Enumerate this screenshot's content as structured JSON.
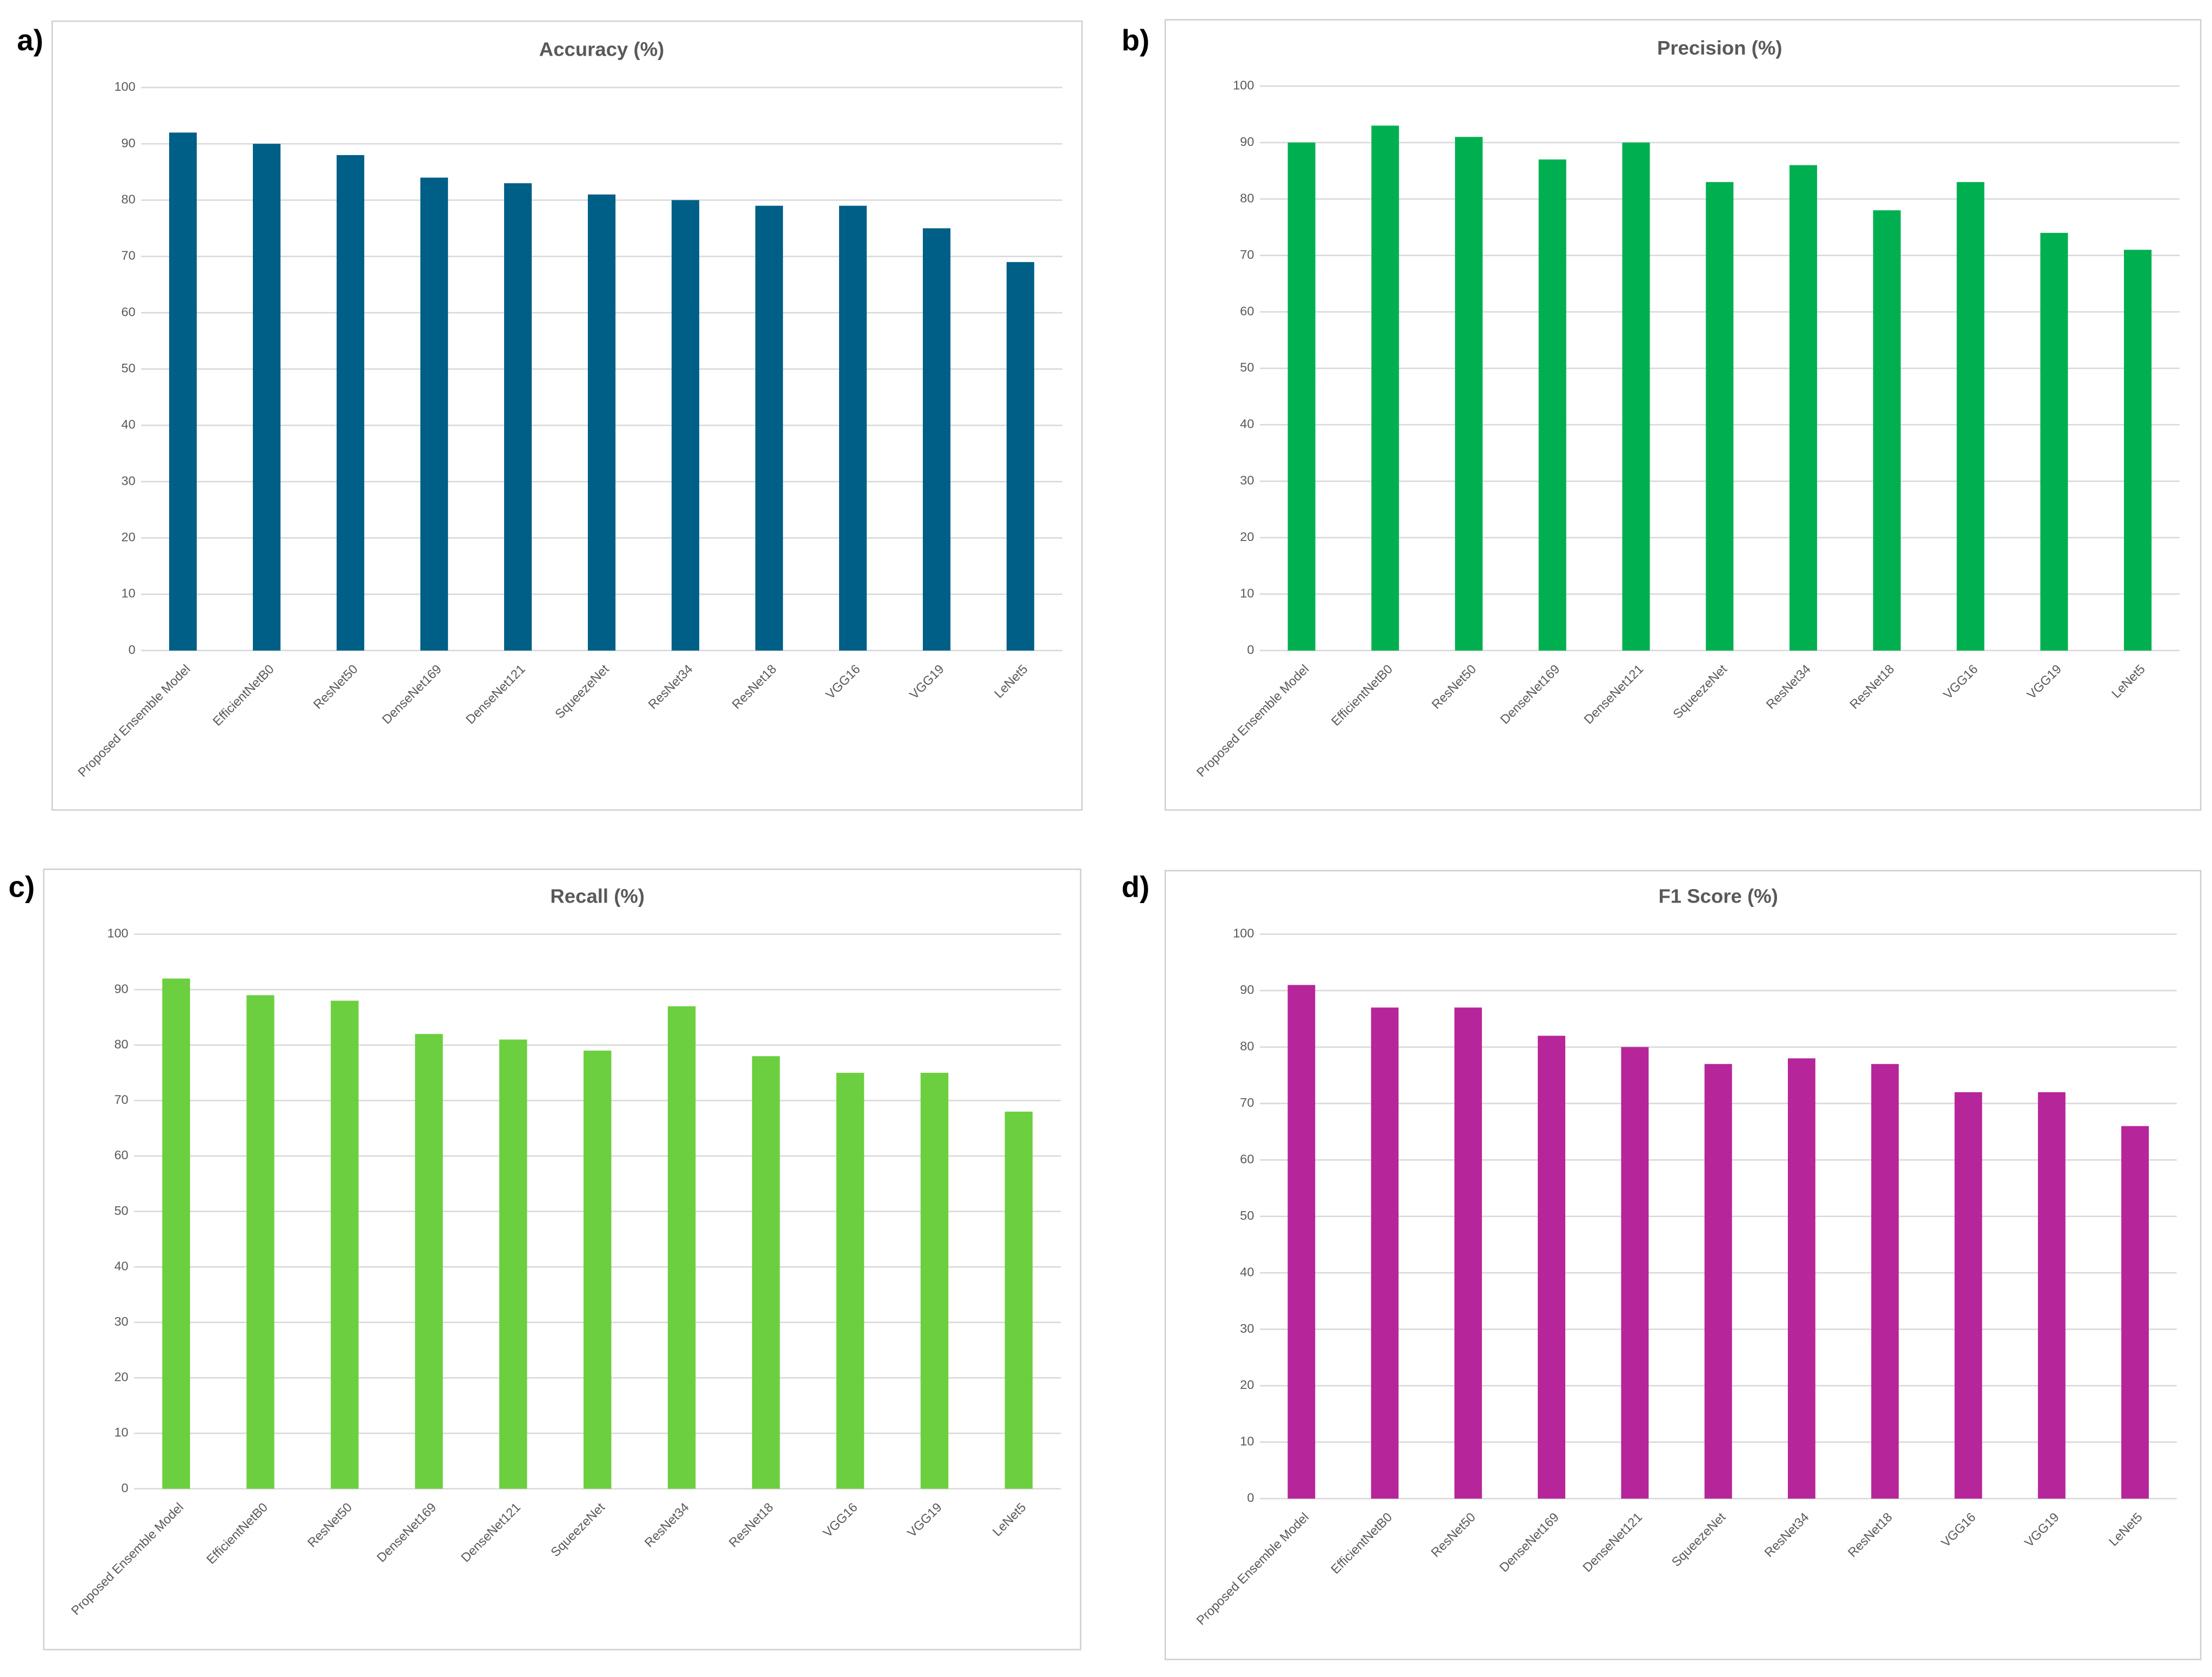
{
  "chart_data": [
    {
      "type": "bar",
      "label": "a)",
      "title": "Accuracy (%)",
      "categories": [
        "Proposed Ensemble Model",
        "EfficientNetB0",
        "ResNet50",
        "DenseNet169",
        "DenseNet121",
        "SqueezeNet",
        "ResNet34",
        "ResNet18",
        "VGG16",
        "VGG19",
        "LeNet5"
      ],
      "values": [
        92,
        90,
        88,
        84,
        83,
        81,
        80,
        79,
        79,
        75,
        69
      ],
      "color": "#005f87",
      "ylim": [
        0,
        100
      ],
      "yticks": [
        0,
        10,
        20,
        30,
        40,
        50,
        60,
        70,
        80,
        90,
        100
      ],
      "grid": true
    },
    {
      "type": "bar",
      "label": "b)",
      "title": "Precision (%)",
      "categories": [
        "Proposed Ensemble Model",
        "EfficientNetB0",
        "ResNet50",
        "DenseNet169",
        "DenseNet121",
        "SqueezeNet",
        "ResNet34",
        "ResNet18",
        "VGG16",
        "VGG19",
        "LeNet5"
      ],
      "values": [
        90,
        93,
        91,
        87,
        90,
        83,
        86,
        78,
        83,
        74,
        71
      ],
      "color": "#00b050",
      "ylim": [
        0,
        100
      ],
      "yticks": [
        0,
        10,
        20,
        30,
        40,
        50,
        60,
        70,
        80,
        90,
        100
      ],
      "grid": true
    },
    {
      "type": "bar",
      "label": "c)",
      "title": "Recall (%)",
      "categories": [
        "Proposed Ensemble Model",
        "EfficientNetB0",
        "ResNet50",
        "DenseNet169",
        "DenseNet121",
        "SqueezeNet",
        "ResNet34",
        "ResNet18",
        "VGG16",
        "VGG19",
        "LeNet5"
      ],
      "values": [
        92,
        89,
        88,
        82,
        81,
        79,
        87,
        78,
        75,
        75,
        68
      ],
      "color": "#6ccf3f",
      "ylim": [
        0,
        100
      ],
      "yticks": [
        0,
        10,
        20,
        30,
        40,
        50,
        60,
        70,
        80,
        90,
        100
      ],
      "grid": true
    },
    {
      "type": "bar",
      "label": "d)",
      "title": "F1 Score (%)",
      "categories": [
        "Proposed Ensemble Model",
        "EfficientNetB0",
        "ResNet50",
        "DenseNet169",
        "DenseNet121",
        "SqueezeNet",
        "ResNet34",
        "ResNet18",
        "VGG16",
        "VGG19",
        "LeNet5"
      ],
      "values": [
        91,
        87,
        87,
        82,
        80,
        77,
        78,
        77,
        72,
        72,
        66
      ],
      "color": "#b7259a",
      "ylim": [
        0,
        100
      ],
      "yticks": [
        0,
        10,
        20,
        30,
        40,
        50,
        60,
        70,
        80,
        90,
        100
      ],
      "grid": true
    }
  ]
}
